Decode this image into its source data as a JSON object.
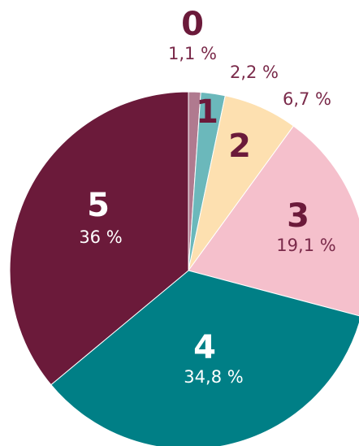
{
  "chart_data": {
    "type": "pie",
    "categories": [
      "0",
      "1",
      "2",
      "3",
      "4",
      "5"
    ],
    "values": [
      1.1,
      2.2,
      6.7,
      19.1,
      34.8,
      36
    ],
    "value_labels": [
      "1,1 %",
      "2,2 %",
      "6,7 %",
      "19,1 %",
      "34,8 %",
      "36 %"
    ],
    "colors": [
      "#b07a8f",
      "#6bb8bb",
      "#fde0b0",
      "#f5c0cc",
      "#007f86",
      "#6b1a3a"
    ]
  }
}
